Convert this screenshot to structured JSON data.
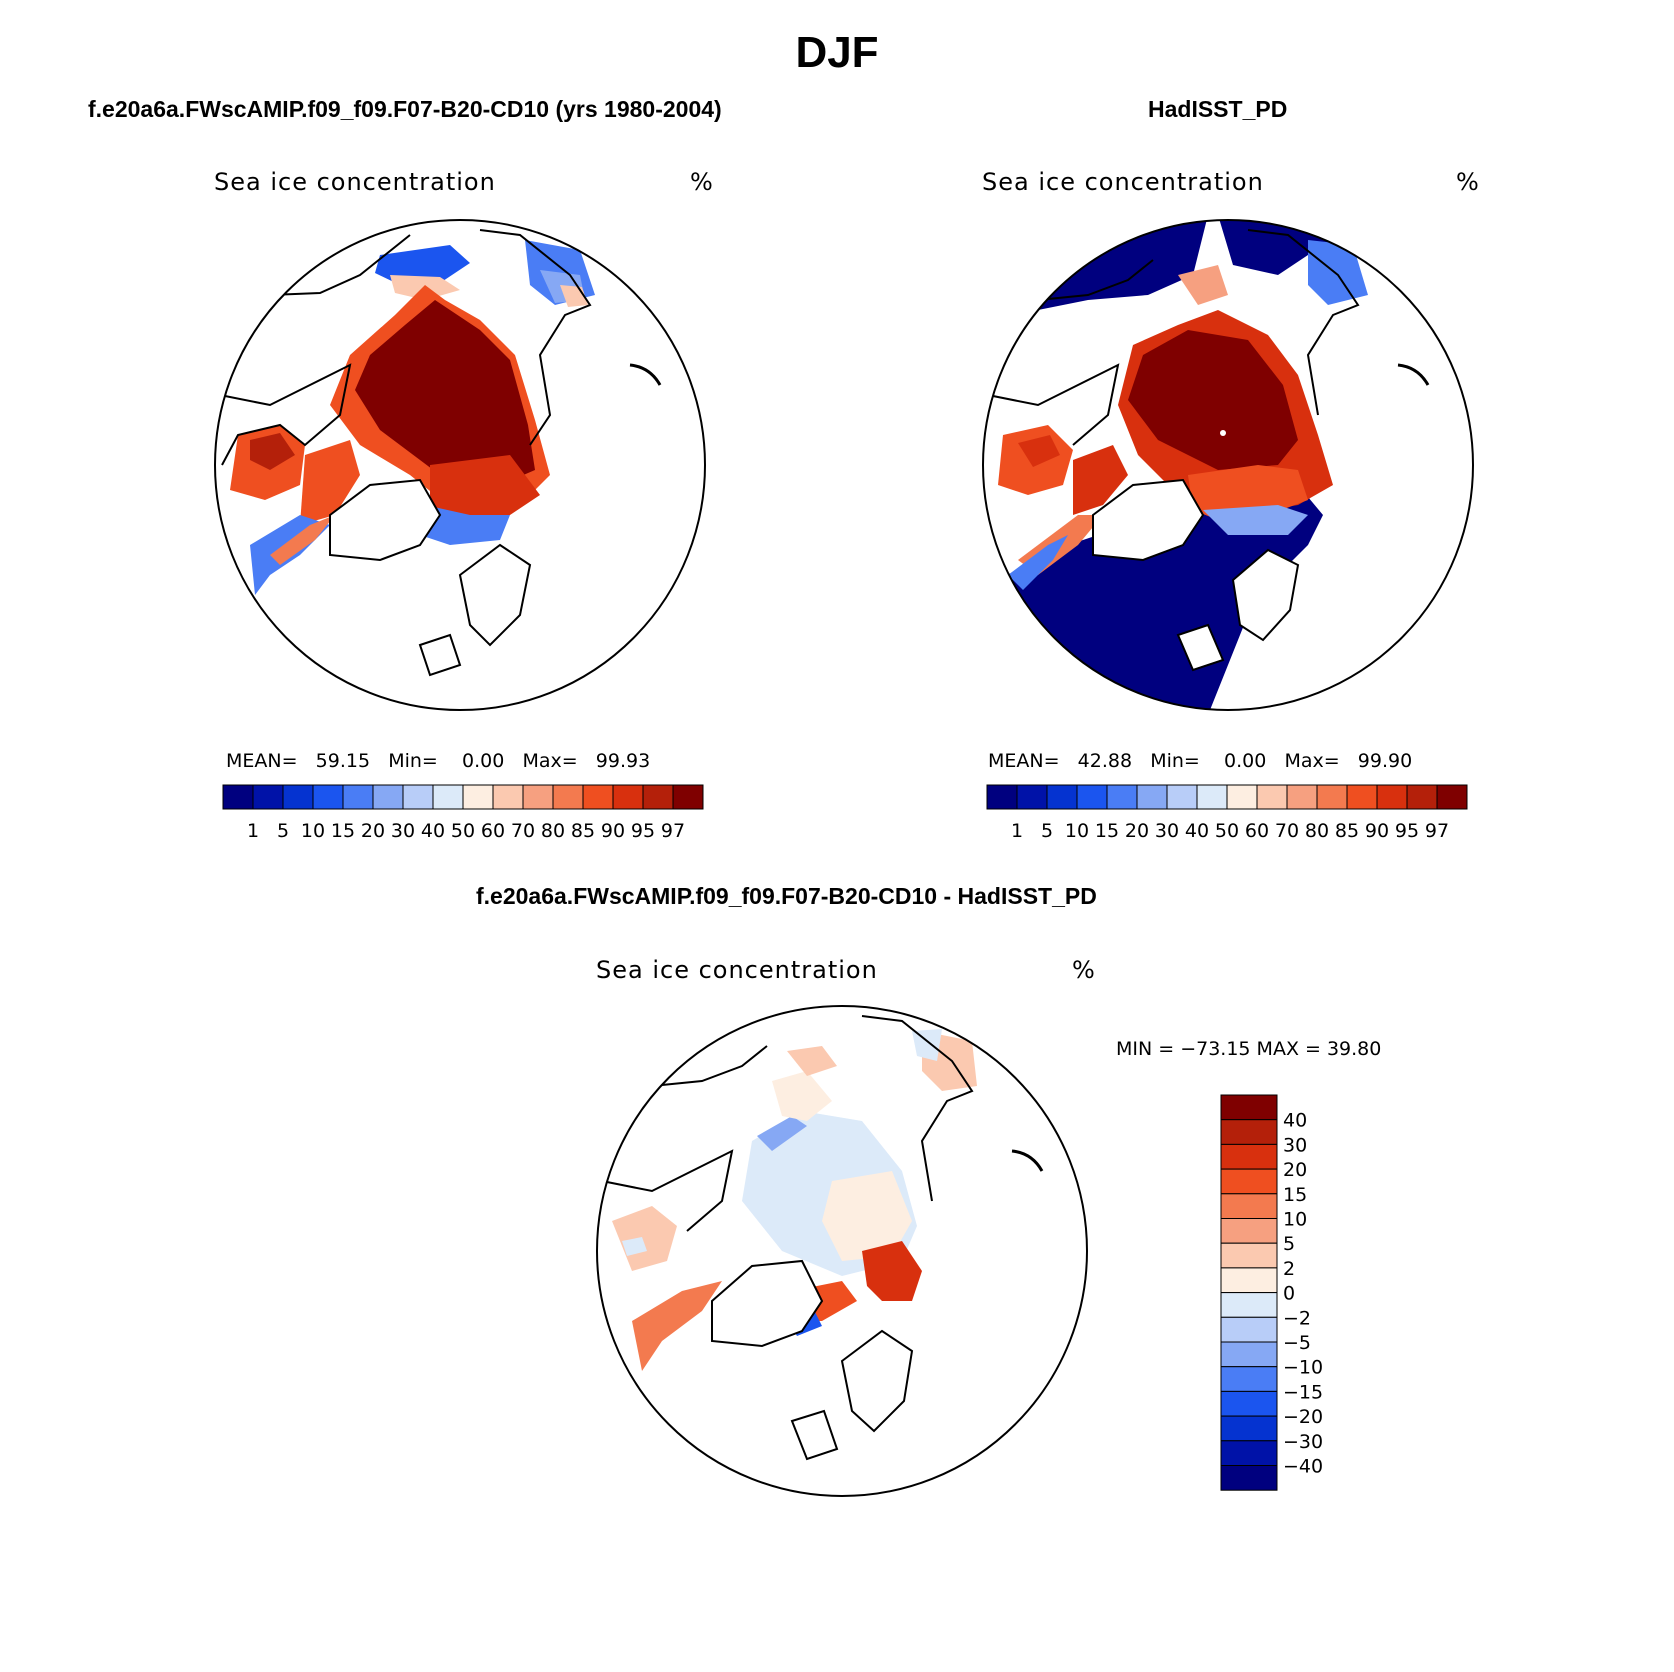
{
  "title": "DJF",
  "panels": [
    {
      "id": "model",
      "case_title": "f.e20a6a.FWscAMIP.f09_f09.F07-B20-CD10 (yrs 1980-2004)",
      "variable": "Sea ice concentration",
      "units": "%",
      "stats": {
        "mean_label": "MEAN=",
        "mean": "59.15",
        "min_label": "Min=",
        "min": "0.00",
        "max_label": "Max=",
        "max": "99.93"
      }
    },
    {
      "id": "obs",
      "case_title": "HadISST_PD",
      "variable": "Sea ice concentration",
      "units": "%",
      "stats": {
        "mean_label": "MEAN=",
        "mean": "42.88",
        "min_label": "Min=",
        "min": "0.00",
        "max_label": "Max=",
        "max": "99.90"
      }
    },
    {
      "id": "diff",
      "case_title": "f.e20a6a.FWscAMIP.f09_f09.F07-B20-CD10 - HadISST_PD",
      "variable": "Sea ice concentration",
      "units": "%",
      "stats_text": "MIN = −73.15 MAX =   39.80"
    }
  ],
  "colorbar_levels": [
    "1",
    "5",
    "10",
    "15",
    "20",
    "30",
    "40",
    "50",
    "60",
    "70",
    "80",
    "85",
    "90",
    "95",
    "97"
  ],
  "colorbar_colors": [
    "#00007f",
    "#0012a8",
    "#0533d0",
    "#1b55ef",
    "#4a7df5",
    "#86a8f4",
    "#b8cdf8",
    "#dceaf9",
    "#fdeee1",
    "#fbc9b0",
    "#f6a080",
    "#f37a4f",
    "#ef4f20",
    "#d8300e",
    "#b4200a",
    "#7f0000"
  ],
  "diff_levels": [
    "40",
    "30",
    "20",
    "15",
    "10",
    "5",
    "2",
    "0",
    "−2",
    "−5",
    "−10",
    "−15",
    "−20",
    "−30",
    "−40"
  ],
  "diff_colors": [
    "#7f0000",
    "#b4200a",
    "#d8300e",
    "#ef4f20",
    "#f37a4f",
    "#f6a080",
    "#fbc9b0",
    "#fdeee1",
    "#dceaf9",
    "#b8cdf8",
    "#86a8f4",
    "#4a7df5",
    "#1b55ef",
    "#0533d0",
    "#0012a8",
    "#00007f"
  ]
}
